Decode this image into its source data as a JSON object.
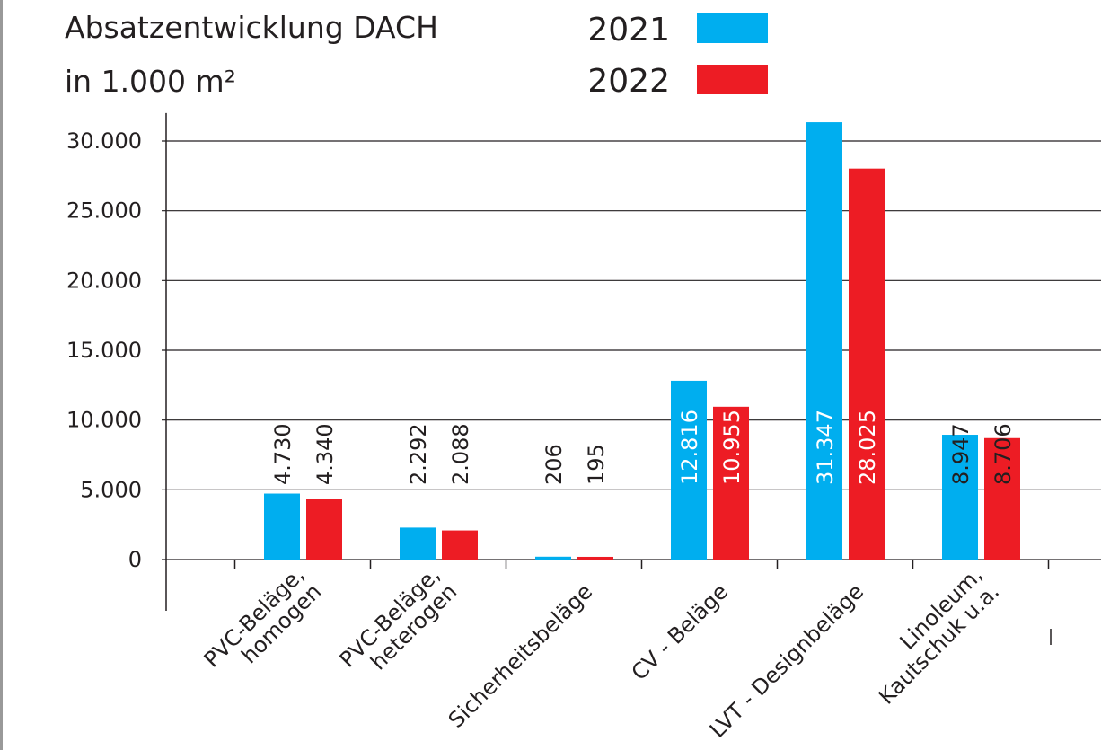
{
  "chart_data": {
    "type": "bar",
    "title": "Absatzentwicklung DACH",
    "subtitle": "in 1.000 m²",
    "categories": [
      "PVC-Beläge,\nhomogen",
      "PVC-Beläge,\nheterogen",
      "Sicherheitsbeläge",
      "CV - Beläge",
      "LVT - Designbeläge",
      "Linoleum,\nKautschuk u.a."
    ],
    "series": [
      {
        "name": "2021",
        "color": "#00aeef",
        "values": [
          4730,
          2292,
          206,
          12816,
          31347,
          8947
        ],
        "value_labels": [
          "4.730",
          "2.292",
          "206",
          "12.816",
          "31.347",
          "8.947"
        ]
      },
      {
        "name": "2022",
        "color": "#ed1c24",
        "values": [
          4340,
          2088,
          195,
          10955,
          28025,
          8706
        ],
        "value_labels": [
          "4.340",
          "2.088",
          "195",
          "10.955",
          "28.025",
          "8.706"
        ]
      }
    ],
    "ylim": [
      0,
      32000
    ],
    "yticks": [
      0,
      {
        "value": 5000,
        "label": "5.000"
      },
      {
        "value": 10000,
        "label": "10.000"
      },
      {
        "value": 15000,
        "label": "15.000"
      },
      {
        "value": 20000,
        "label": "20.000"
      },
      {
        "value": 25000,
        "label": "25.000"
      },
      {
        "value": 30000,
        "label": "30.000"
      }
    ],
    "grid": true,
    "legend": "top"
  }
}
